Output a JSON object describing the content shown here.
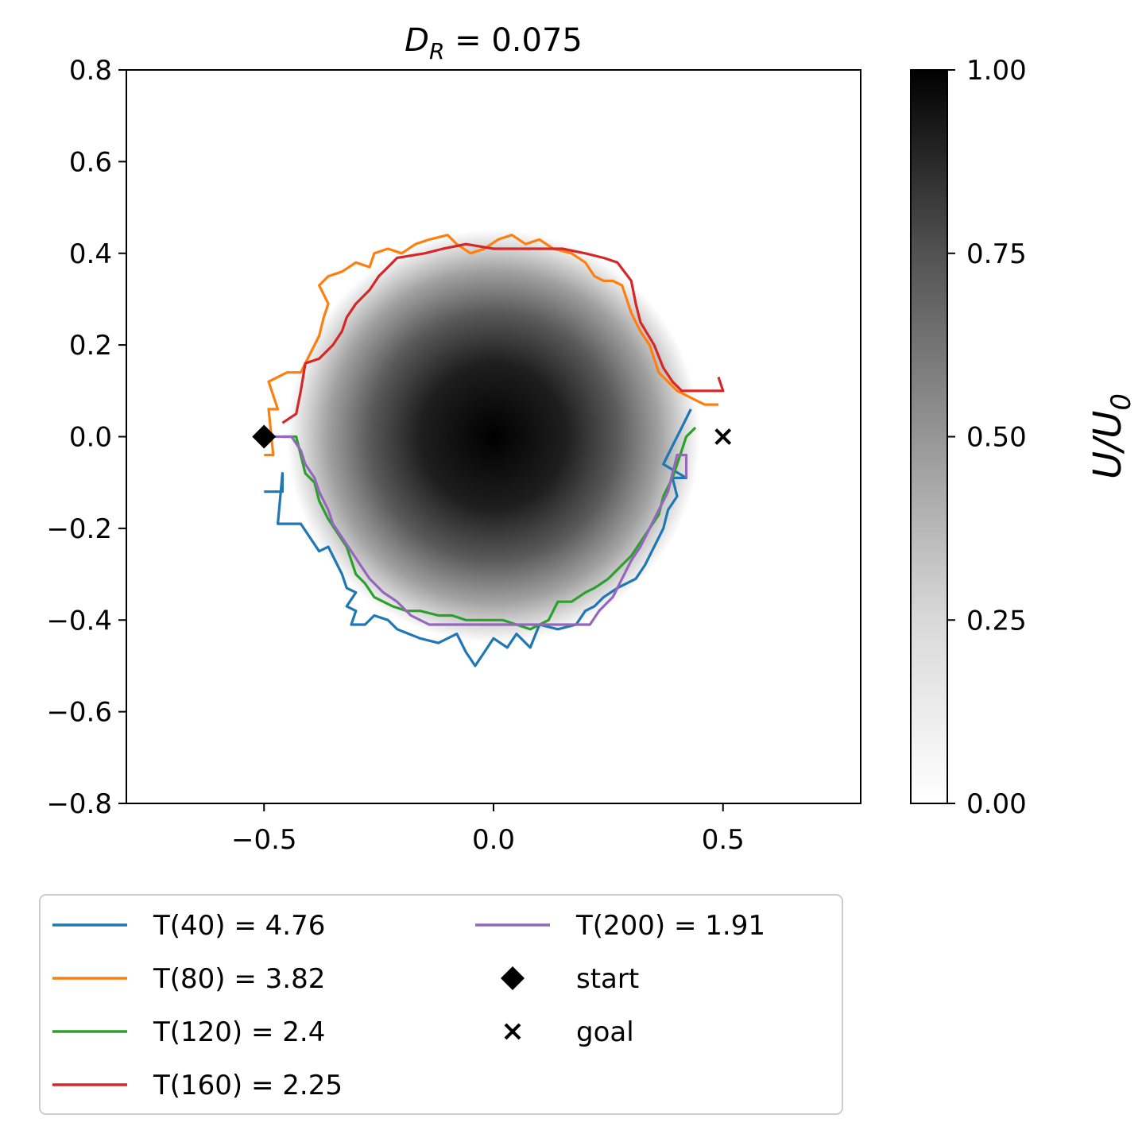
{
  "chart_data": {
    "type": "line",
    "title": {
      "main": "D",
      "sub": "R",
      "rest": " = 0.075"
    },
    "xlim": [
      -0.8,
      0.8
    ],
    "ylim": [
      -0.8,
      0.8
    ],
    "xticks": [
      -0.5,
      0.0,
      0.5
    ],
    "xtick_labels": [
      "−0.5",
      "0.0",
      "0.5"
    ],
    "yticks": [
      0.8,
      0.6,
      0.4,
      0.2,
      0.0,
      -0.2,
      -0.4,
      -0.6,
      -0.8
    ],
    "ytick_labels": [
      "0.8",
      "0.6",
      "0.4",
      "0.2",
      "0.0",
      "−0.2",
      "−0.4",
      "−0.6",
      "−0.8"
    ],
    "grid": false,
    "background": {
      "type": "heatmap",
      "colormap": "Greys",
      "function": "gaussian",
      "center": [
        0.0,
        0.0
      ],
      "radius": 0.42,
      "vmin": 0.0,
      "vmax": 1.0
    },
    "colorbar": {
      "label_main": "U/U",
      "label_sub": "0",
      "ticks": [
        1.0,
        0.75,
        0.5,
        0.25,
        0.0
      ],
      "tick_labels": [
        "1.00",
        "0.75",
        "0.50",
        "0.25",
        "0.00"
      ]
    },
    "series": [
      {
        "name": "T(40) = 4.76",
        "color": "#1f77b4",
        "points": [
          [
            -0.5,
            -0.12
          ],
          [
            -0.46,
            -0.12
          ],
          [
            -0.46,
            -0.08
          ],
          [
            -0.47,
            -0.19
          ],
          [
            -0.42,
            -0.19
          ],
          [
            -0.4,
            -0.22
          ],
          [
            -0.38,
            -0.25
          ],
          [
            -0.36,
            -0.24
          ],
          [
            -0.33,
            -0.3
          ],
          [
            -0.32,
            -0.33
          ],
          [
            -0.3,
            -0.34
          ],
          [
            -0.32,
            -0.37
          ],
          [
            -0.3,
            -0.38
          ],
          [
            -0.31,
            -0.41
          ],
          [
            -0.28,
            -0.41
          ],
          [
            -0.26,
            -0.39
          ],
          [
            -0.23,
            -0.4
          ],
          [
            -0.21,
            -0.42
          ],
          [
            -0.16,
            -0.44
          ],
          [
            -0.12,
            -0.45
          ],
          [
            -0.08,
            -0.43
          ],
          [
            -0.06,
            -0.47
          ],
          [
            -0.04,
            -0.5
          ],
          [
            -0.02,
            -0.47
          ],
          [
            0.0,
            -0.44
          ],
          [
            0.03,
            -0.46
          ],
          [
            0.05,
            -0.43
          ],
          [
            0.08,
            -0.46
          ],
          [
            0.1,
            -0.41
          ],
          [
            0.14,
            -0.42
          ],
          [
            0.18,
            -0.41
          ],
          [
            0.2,
            -0.38
          ],
          [
            0.22,
            -0.37
          ],
          [
            0.24,
            -0.35
          ],
          [
            0.27,
            -0.33
          ],
          [
            0.31,
            -0.31
          ],
          [
            0.33,
            -0.28
          ],
          [
            0.35,
            -0.24
          ],
          [
            0.37,
            -0.2
          ],
          [
            0.38,
            -0.16
          ],
          [
            0.4,
            -0.13
          ],
          [
            0.39,
            -0.09
          ],
          [
            0.42,
            -0.09
          ],
          [
            0.37,
            -0.06
          ],
          [
            0.39,
            -0.02
          ],
          [
            0.41,
            0.02
          ],
          [
            0.43,
            0.06
          ]
        ]
      },
      {
        "name": "T(80) = 3.82",
        "color": "#ff7f0e",
        "points": [
          [
            -0.5,
            -0.04
          ],
          [
            -0.48,
            -0.04
          ],
          [
            -0.49,
            0.06
          ],
          [
            -0.47,
            0.06
          ],
          [
            -0.49,
            0.12
          ],
          [
            -0.45,
            0.14
          ],
          [
            -0.42,
            0.14
          ],
          [
            -0.4,
            0.18
          ],
          [
            -0.38,
            0.22
          ],
          [
            -0.37,
            0.26
          ],
          [
            -0.36,
            0.29
          ],
          [
            -0.38,
            0.33
          ],
          [
            -0.36,
            0.35
          ],
          [
            -0.33,
            0.36
          ],
          [
            -0.3,
            0.38
          ],
          [
            -0.27,
            0.37
          ],
          [
            -0.26,
            0.4
          ],
          [
            -0.23,
            0.41
          ],
          [
            -0.2,
            0.4
          ],
          [
            -0.17,
            0.42
          ],
          [
            -0.14,
            0.43
          ],
          [
            -0.1,
            0.44
          ],
          [
            -0.08,
            0.42
          ],
          [
            -0.05,
            0.4
          ],
          [
            -0.02,
            0.41
          ],
          [
            0.01,
            0.43
          ],
          [
            0.04,
            0.44
          ],
          [
            0.07,
            0.42
          ],
          [
            0.1,
            0.43
          ],
          [
            0.13,
            0.41
          ],
          [
            0.17,
            0.4
          ],
          [
            0.2,
            0.38
          ],
          [
            0.22,
            0.35
          ],
          [
            0.24,
            0.34
          ],
          [
            0.26,
            0.34
          ],
          [
            0.28,
            0.33
          ],
          [
            0.29,
            0.3
          ],
          [
            0.3,
            0.27
          ],
          [
            0.31,
            0.25
          ],
          [
            0.32,
            0.23
          ],
          [
            0.34,
            0.2
          ],
          [
            0.35,
            0.17
          ],
          [
            0.36,
            0.14
          ],
          [
            0.38,
            0.12
          ],
          [
            0.4,
            0.1
          ],
          [
            0.42,
            0.09
          ],
          [
            0.44,
            0.08
          ],
          [
            0.46,
            0.07
          ],
          [
            0.49,
            0.07
          ]
        ]
      },
      {
        "name": "T(120) = 2.4",
        "color": "#2ca02c",
        "points": [
          [
            -0.46,
            0.0
          ],
          [
            -0.43,
            0.0
          ],
          [
            -0.41,
            -0.08
          ],
          [
            -0.39,
            -0.1
          ],
          [
            -0.38,
            -0.14
          ],
          [
            -0.36,
            -0.18
          ],
          [
            -0.34,
            -0.21
          ],
          [
            -0.32,
            -0.24
          ],
          [
            -0.31,
            -0.27
          ],
          [
            -0.3,
            -0.3
          ],
          [
            -0.28,
            -0.32
          ],
          [
            -0.26,
            -0.35
          ],
          [
            -0.22,
            -0.37
          ],
          [
            -0.19,
            -0.38
          ],
          [
            -0.16,
            -0.38
          ],
          [
            -0.12,
            -0.39
          ],
          [
            -0.09,
            -0.39
          ],
          [
            -0.06,
            -0.4
          ],
          [
            -0.02,
            -0.4
          ],
          [
            0.02,
            -0.4
          ],
          [
            0.05,
            -0.41
          ],
          [
            0.08,
            -0.42
          ],
          [
            0.12,
            -0.4
          ],
          [
            0.14,
            -0.36
          ],
          [
            0.17,
            -0.36
          ],
          [
            0.2,
            -0.34
          ],
          [
            0.22,
            -0.33
          ],
          [
            0.25,
            -0.31
          ],
          [
            0.27,
            -0.29
          ],
          [
            0.3,
            -0.26
          ],
          [
            0.32,
            -0.23
          ],
          [
            0.34,
            -0.2
          ],
          [
            0.36,
            -0.17
          ],
          [
            0.37,
            -0.13
          ],
          [
            0.39,
            -0.09
          ],
          [
            0.4,
            -0.06
          ],
          [
            0.41,
            -0.03
          ],
          [
            0.42,
            0.0
          ],
          [
            0.44,
            0.02
          ]
        ]
      },
      {
        "name": "T(160) = 2.25",
        "color": "#d62728",
        "points": [
          [
            -0.46,
            0.03
          ],
          [
            -0.43,
            0.05
          ],
          [
            -0.42,
            0.1
          ],
          [
            -0.41,
            0.16
          ],
          [
            -0.38,
            0.17
          ],
          [
            -0.35,
            0.2
          ],
          [
            -0.33,
            0.23
          ],
          [
            -0.32,
            0.26
          ],
          [
            -0.3,
            0.29
          ],
          [
            -0.27,
            0.32
          ],
          [
            -0.25,
            0.35
          ],
          [
            -0.23,
            0.37
          ],
          [
            -0.21,
            0.39
          ],
          [
            -0.15,
            0.4
          ],
          [
            -0.11,
            0.41
          ],
          [
            -0.06,
            0.42
          ],
          [
            0.0,
            0.41
          ],
          [
            0.05,
            0.41
          ],
          [
            0.1,
            0.41
          ],
          [
            0.15,
            0.41
          ],
          [
            0.2,
            0.4
          ],
          [
            0.24,
            0.39
          ],
          [
            0.27,
            0.38
          ],
          [
            0.3,
            0.34
          ],
          [
            0.31,
            0.29
          ],
          [
            0.32,
            0.25
          ],
          [
            0.35,
            0.2
          ],
          [
            0.37,
            0.15
          ],
          [
            0.39,
            0.12
          ],
          [
            0.41,
            0.1
          ],
          [
            0.44,
            0.1
          ],
          [
            0.47,
            0.1
          ],
          [
            0.5,
            0.1
          ],
          [
            0.49,
            0.13
          ]
        ]
      },
      {
        "name": "T(200) = 1.91",
        "color": "#9467bd",
        "points": [
          [
            -0.48,
            0.0
          ],
          [
            -0.44,
            0.0
          ],
          [
            -0.42,
            -0.03
          ],
          [
            -0.41,
            -0.06
          ],
          [
            -0.39,
            -0.09
          ],
          [
            -0.38,
            -0.12
          ],
          [
            -0.36,
            -0.16
          ],
          [
            -0.35,
            -0.19
          ],
          [
            -0.33,
            -0.22
          ],
          [
            -0.31,
            -0.25
          ],
          [
            -0.29,
            -0.28
          ],
          [
            -0.27,
            -0.31
          ],
          [
            -0.24,
            -0.34
          ],
          [
            -0.21,
            -0.36
          ],
          [
            -0.18,
            -0.39
          ],
          [
            -0.14,
            -0.41
          ],
          [
            -0.09,
            -0.41
          ],
          [
            -0.03,
            -0.41
          ],
          [
            0.03,
            -0.41
          ],
          [
            0.09,
            -0.41
          ],
          [
            0.15,
            -0.41
          ],
          [
            0.21,
            -0.41
          ],
          [
            0.23,
            -0.38
          ],
          [
            0.26,
            -0.35
          ],
          [
            0.28,
            -0.31
          ],
          [
            0.3,
            -0.27
          ],
          [
            0.32,
            -0.24
          ],
          [
            0.34,
            -0.2
          ],
          [
            0.36,
            -0.16
          ],
          [
            0.38,
            -0.12
          ],
          [
            0.39,
            -0.08
          ],
          [
            0.4,
            -0.04
          ],
          [
            0.42,
            -0.04
          ],
          [
            0.42,
            -0.09
          ]
        ]
      }
    ],
    "markers": [
      {
        "name": "start",
        "shape": "diamond",
        "x": -0.5,
        "y": 0.0,
        "color": "#000000"
      },
      {
        "name": "goal",
        "shape": "x",
        "x": 0.5,
        "y": 0.0,
        "color": "#000000"
      }
    ],
    "legend": {
      "placement": "below",
      "columns": 2,
      "entries": [
        {
          "label": "T(40) = 4.76",
          "kind": "line",
          "color": "#1f77b4"
        },
        {
          "label": "T(80) = 3.82",
          "kind": "line",
          "color": "#ff7f0e"
        },
        {
          "label": "T(120) = 2.4",
          "kind": "line",
          "color": "#2ca02c"
        },
        {
          "label": "T(160) = 2.25",
          "kind": "line",
          "color": "#d62728"
        },
        {
          "label": "T(200) = 1.91",
          "kind": "line",
          "color": "#9467bd"
        },
        {
          "label": "start",
          "kind": "diamond",
          "color": "#000000"
        },
        {
          "label": "goal",
          "kind": "x",
          "color": "#000000"
        }
      ]
    }
  }
}
